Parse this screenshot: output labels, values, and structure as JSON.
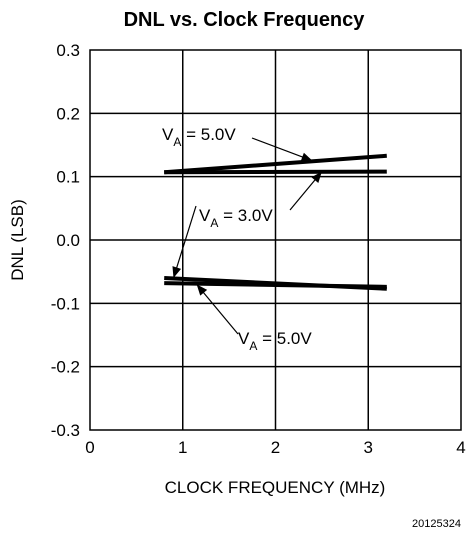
{
  "chart_data": {
    "type": "line",
    "title": "DNL vs. Clock Frequency",
    "xlabel": "CLOCK FREQUENCY (MHz)",
    "ylabel": "DNL (LSB)",
    "xlim": [
      0,
      4
    ],
    "ylim": [
      -0.3,
      0.3
    ],
    "x_ticks": [
      0,
      1,
      2,
      3,
      4
    ],
    "x_tick_labels": [
      "0",
      "1",
      "2",
      "3",
      "4"
    ],
    "y_ticks": [
      0.3,
      0.2,
      0.1,
      0.0,
      -0.1,
      -0.2,
      -0.3
    ],
    "y_tick_labels": [
      "0.3",
      "0.2",
      "0.1",
      "0.0",
      "-0.1",
      "-0.2",
      "-0.3"
    ],
    "grid": true,
    "series": [
      {
        "x": [
          0.8,
          3.2
        ],
        "values": [
          0.107,
          0.133
        ]
      },
      {
        "x": [
          0.8,
          3.2
        ],
        "values": [
          0.107,
          0.108
        ]
      },
      {
        "x": [
          0.8,
          3.2
        ],
        "values": [
          -0.06,
          -0.077
        ]
      },
      {
        "x": [
          0.8,
          3.2
        ],
        "values": [
          -0.068,
          -0.074
        ]
      }
    ],
    "annotations": [
      {
        "label": "V",
        "sub": "A",
        "rest": " = 5.0V",
        "target": [
          2.4,
          0.125
        ]
      },
      {
        "label": "V",
        "sub": "A",
        "rest": " = 3.0V",
        "target": [
          2.5,
          0.108
        ]
      },
      {
        "label": "V",
        "sub": "A",
        "rest": " = 3.0V",
        "target": [
          0.9,
          -0.06
        ]
      },
      {
        "label": "V",
        "sub": "A",
        "rest": " = 5.0V",
        "target": [
          1.15,
          -0.07
        ]
      }
    ],
    "footer": "20125324"
  }
}
